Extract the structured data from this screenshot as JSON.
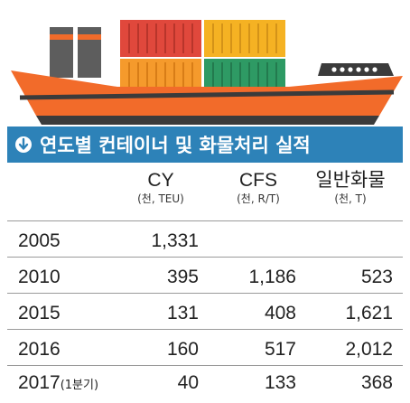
{
  "title": "연도별 컨테이너 및 화물처리 실적",
  "colors": {
    "title_bar": "#2d82b8",
    "hull_orange": "#f26b2a",
    "hull_dark": "#3b3b3b",
    "container_red": "#e0483c",
    "container_yellow": "#f5b223",
    "container_green": "#2e9a64",
    "container_orange": "#f59a2c",
    "funnel_gray": "#5d5d5d"
  },
  "icons": [
    "down-arrow-circle-icon",
    "cargo-ship-icon"
  ],
  "chart_data": {
    "type": "table",
    "columns": [
      {
        "name": "CY",
        "unit": "(천, TEU)"
      },
      {
        "name": "CFS",
        "unit": "(천, R/T)"
      },
      {
        "name": "일반화물",
        "unit": "(천, T)"
      }
    ],
    "rows": [
      {
        "year": "2005",
        "year_suffix": "",
        "cy": "1,331",
        "cfs": "",
        "general": ""
      },
      {
        "year": "2010",
        "year_suffix": "",
        "cy": "395",
        "cfs": "1,186",
        "general": "523"
      },
      {
        "year": "2015",
        "year_suffix": "",
        "cy": "131",
        "cfs": "408",
        "general": "1,621"
      },
      {
        "year": "2016",
        "year_suffix": "",
        "cy": "160",
        "cfs": "517",
        "general": "2,012"
      },
      {
        "year": "2017",
        "year_suffix": "(1분기)",
        "cy": "40",
        "cfs": "133",
        "general": "368"
      }
    ]
  }
}
